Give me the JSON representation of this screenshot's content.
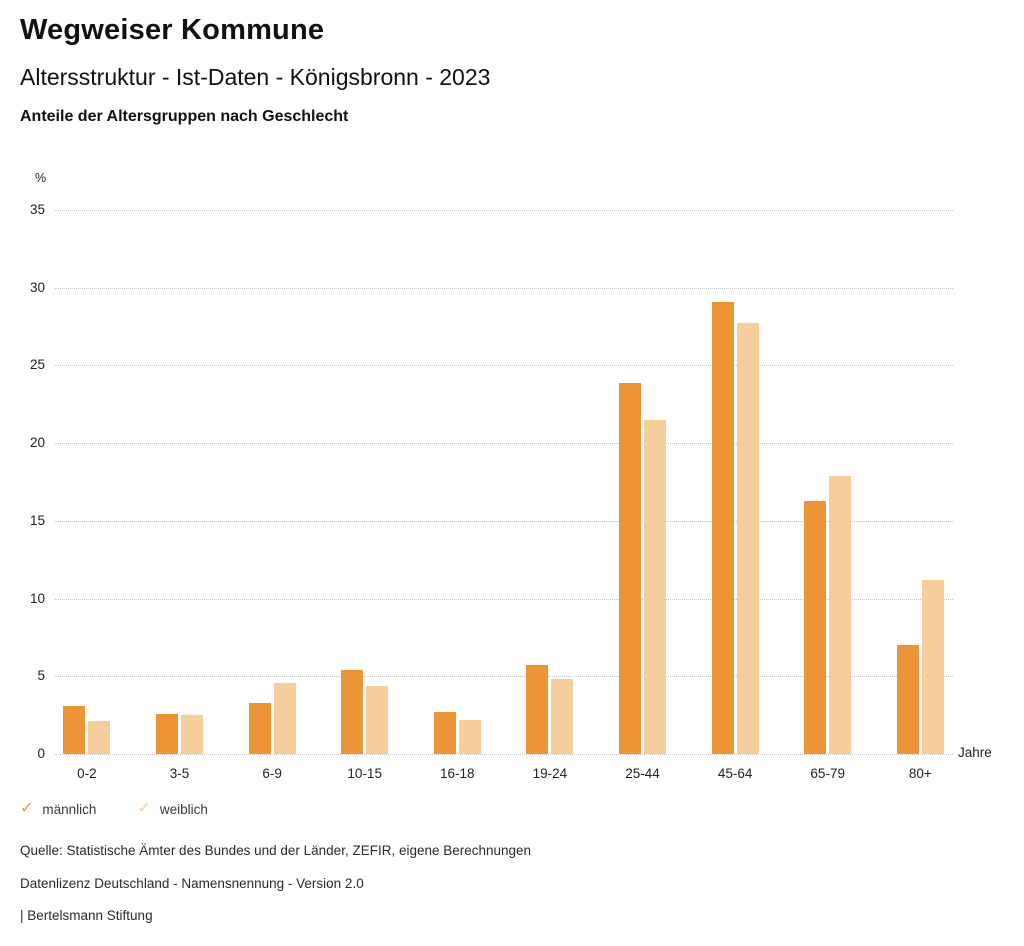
{
  "header": {
    "title": "Wegweiser Kommune",
    "subtitle": "Altersstruktur - Ist-Daten - Königsbronn - 2023",
    "chart_heading": "Anteile der Altersgruppen nach Geschlecht"
  },
  "chart_data": {
    "type": "bar",
    "title": "Anteile der Altersgruppen nach Geschlecht",
    "categories": [
      "0-2",
      "3-5",
      "6-9",
      "10-15",
      "16-18",
      "19-24",
      "25-44",
      "45-64",
      "65-79",
      "80+"
    ],
    "series": [
      {
        "name": "männlich",
        "color": "#EC9536",
        "values": [
          3.1,
          2.6,
          3.3,
          5.4,
          2.7,
          5.7,
          23.9,
          29.1,
          16.3,
          7.0
        ]
      },
      {
        "name": "weiblich",
        "color": "#F6CD9D",
        "values": [
          2.1,
          2.5,
          4.6,
          4.4,
          2.2,
          4.8,
          21.5,
          27.7,
          17.9,
          11.2
        ]
      }
    ],
    "ylabel": "%",
    "xlabel": "Jahre",
    "ylim": [
      0,
      35
    ],
    "y_ticks": [
      35,
      30,
      25,
      20,
      15,
      10,
      5,
      0
    ],
    "grid": "horizontal-dotted",
    "legend_position": "bottom-left"
  },
  "legend": {
    "check_glyph": "✓",
    "items": [
      {
        "label": "männlich",
        "color": "#EC9536"
      },
      {
        "label": "weiblich",
        "color": "#F6CD9D"
      }
    ]
  },
  "footer": {
    "source": "Quelle: Statistische Ämter des Bundes und der Länder, ZEFIR, eigene Berechnungen",
    "license": "Datenlizenz Deutschland - Namensnennung - Version 2.0",
    "attribution": "| Bertelsmann Stiftung"
  }
}
